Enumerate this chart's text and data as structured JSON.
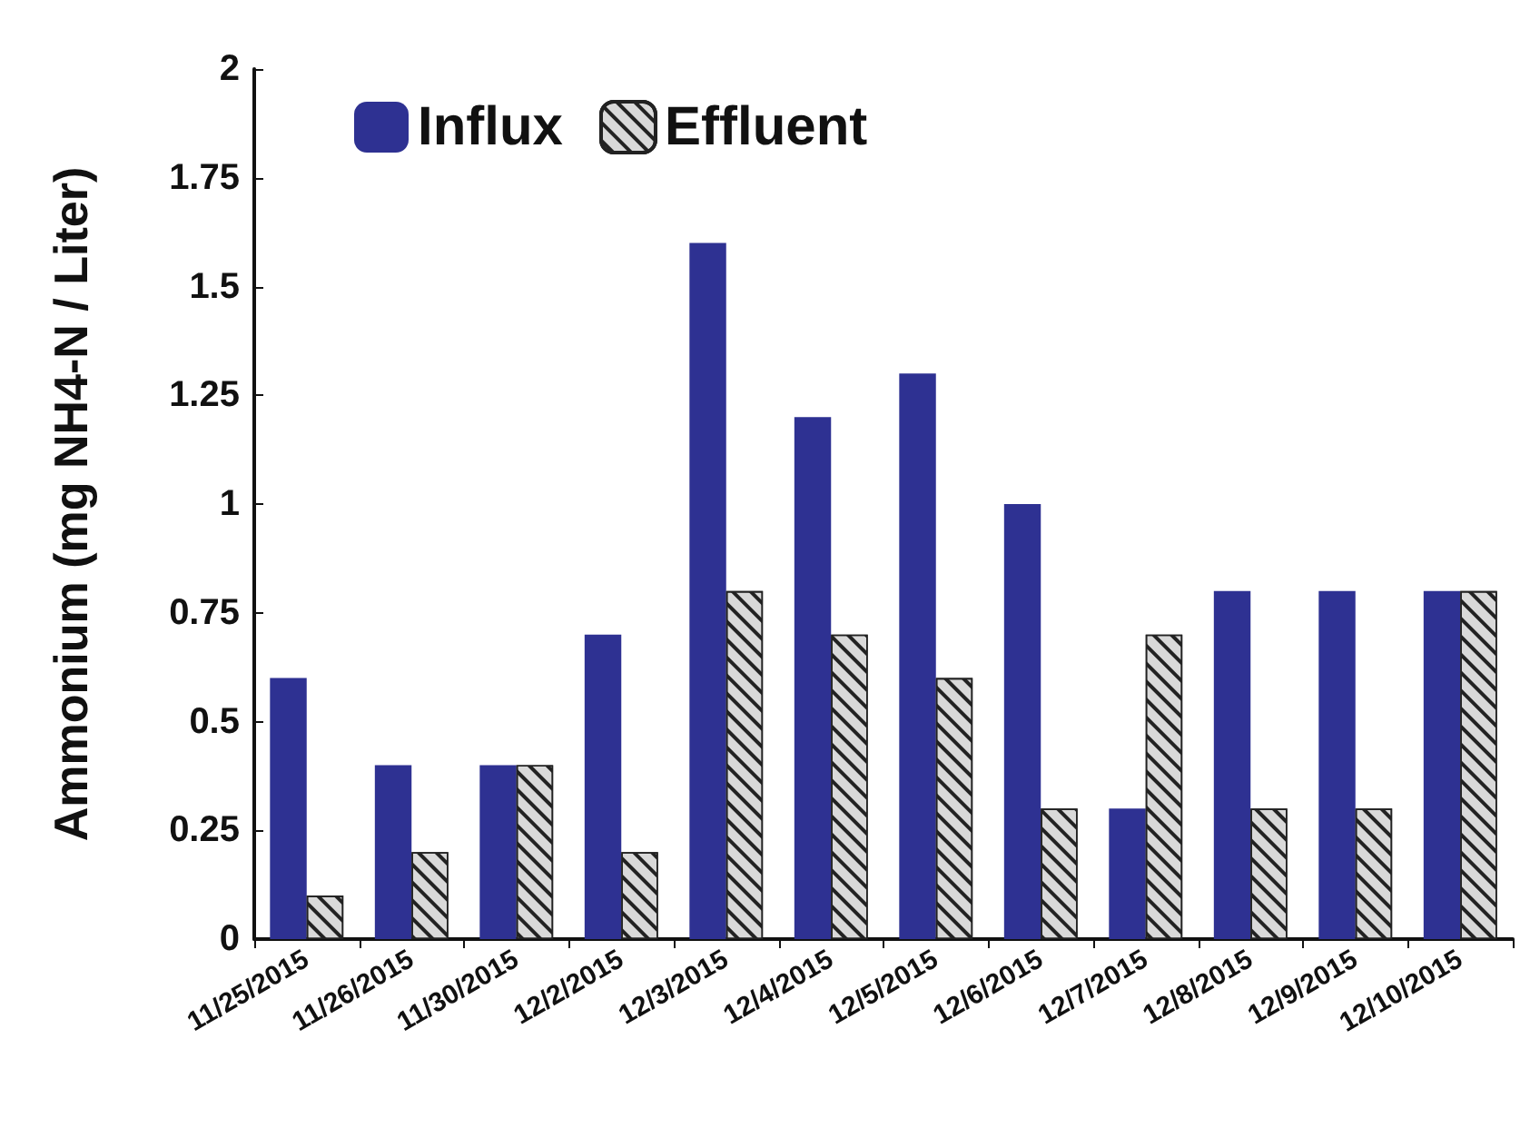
{
  "chart_data": {
    "type": "bar",
    "ylabel": "Ammonium (mg NH4-N / Liter)",
    "categories": [
      "11/25/2015",
      "11/26/2015",
      "11/30/2015",
      "12/2/2015",
      "12/3/2015",
      "12/4/2015",
      "12/5/2015",
      "12/6/2015",
      "12/7/2015",
      "12/8/2015",
      "12/9/2015",
      "12/10/2015"
    ],
    "series": [
      {
        "name": "Influx",
        "color": "#2e3192",
        "values": [
          0.6,
          0.4,
          0.4,
          0.7,
          1.6,
          1.2,
          1.3,
          1.0,
          0.3,
          0.8,
          0.8,
          0.8
        ]
      },
      {
        "name": "Effluent",
        "color": "#d9d9d9",
        "values": [
          0.1,
          0.2,
          0.4,
          0.2,
          0.8,
          0.7,
          0.6,
          0.3,
          0.7,
          0.3,
          0.3,
          0.8
        ]
      }
    ],
    "ylim": [
      0,
      2
    ],
    "yticks": [
      0,
      0.25,
      0.5,
      0.75,
      1,
      1.25,
      1.5,
      1.75,
      2
    ],
    "grid": false,
    "legend": "top left"
  }
}
